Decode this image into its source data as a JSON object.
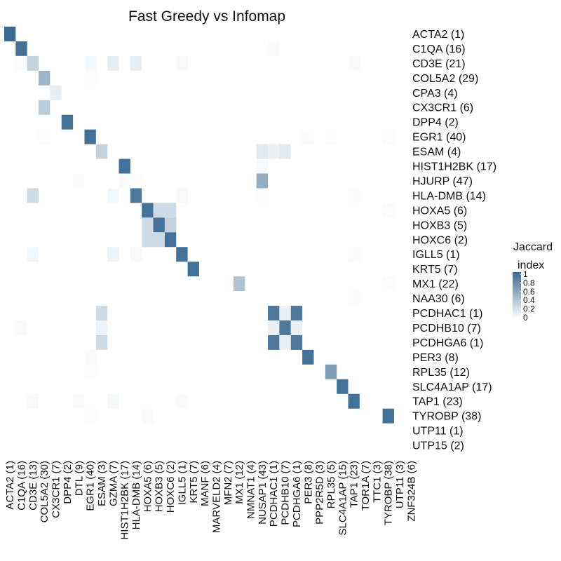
{
  "chart_data": {
    "type": "heatmap",
    "title": "Fast Greedy vs Infomap",
    "rows": [
      "ACTA2 (1)",
      "C1QA (16)",
      "CD3E (21)",
      "COL5A2 (29)",
      "CPA3 (4)",
      "CX3CR1 (6)",
      "DPP4 (2)",
      "EGR1 (40)",
      "ESAM (4)",
      "HIST1H2BK (17)",
      "HJURP (47)",
      "HLA-DMB (14)",
      "HOXA5 (6)",
      "HOXB3 (5)",
      "HOXC6 (2)",
      "IGLL5 (1)",
      "KRT5 (7)",
      "MX1 (22)",
      "NAA30 (6)",
      "PCDHAC1 (1)",
      "PCDHB10 (7)",
      "PCDHGA6 (1)",
      "PER3 (8)",
      "RPL35 (12)",
      "SLC4A1AP (17)",
      "TAP1 (23)",
      "TYROBP (38)",
      "UTP11 (1)",
      "UTP15 (2)"
    ],
    "columns": [
      "ACTA2 (1)",
      "C1QA (16)",
      "CD3E (13)",
      "COL5A2 (30)",
      "CX3CR1 (7)",
      "DPP4 (2)",
      "DTL (9)",
      "EGR1 (40)",
      "ESAM (3)",
      "GZMA (7)",
      "HIST1H2BK (17)",
      "HLA-DMB (14)",
      "HOXA5 (6)",
      "HOXB3 (5)",
      "HOXC6 (2)",
      "IGLL5 (1)",
      "KRT5 (7)",
      "MANF (6)",
      "MARVELD2 (4)",
      "MFN2 (7)",
      "MX1 (12)",
      "NMNAT1 (4)",
      "NUSAP1 (43)",
      "PCDHAC1 (1)",
      "PCDHB10 (7)",
      "PCDHGA6 (1)",
      "PER3 (8)",
      "PPP2R5D (3)",
      "RPL35 (5)",
      "SLC4A1AP (15)",
      "TAP1 (23)",
      "TOR1A (7)",
      "TTC1 (3)",
      "TYROBP (38)",
      "UTP11 (3)",
      "ZNF324B (6)"
    ],
    "cells": [
      [
        0,
        0,
        1.0
      ],
      [
        1,
        1,
        0.95
      ],
      [
        1,
        23,
        0.03
      ],
      [
        2,
        1,
        0.02
      ],
      [
        2,
        2,
        0.3
      ],
      [
        2,
        7,
        0.05
      ],
      [
        2,
        9,
        0.12
      ],
      [
        2,
        11,
        0.12
      ],
      [
        2,
        15,
        0.04
      ],
      [
        2,
        30,
        0.04
      ],
      [
        3,
        3,
        0.5
      ],
      [
        3,
        7,
        0.02
      ],
      [
        4,
        4,
        0.12
      ],
      [
        5,
        3,
        0.35
      ],
      [
        6,
        5,
        0.95
      ],
      [
        7,
        3,
        0.02
      ],
      [
        7,
        7,
        0.95
      ],
      [
        7,
        26,
        0.03
      ],
      [
        7,
        28,
        0.02
      ],
      [
        7,
        33,
        0.02
      ],
      [
        8,
        8,
        0.3
      ],
      [
        8,
        22,
        0.15
      ],
      [
        8,
        23,
        0.1
      ],
      [
        8,
        24,
        0.15
      ],
      [
        9,
        10,
        0.95
      ],
      [
        9,
        22,
        0.04
      ],
      [
        10,
        6,
        0.03
      ],
      [
        10,
        10,
        0.03
      ],
      [
        10,
        11,
        0.02
      ],
      [
        10,
        22,
        0.55
      ],
      [
        11,
        2,
        0.25
      ],
      [
        11,
        9,
        0.05
      ],
      [
        11,
        11,
        0.9
      ],
      [
        11,
        15,
        0.04
      ],
      [
        11,
        22,
        0.02
      ],
      [
        11,
        30,
        0.03
      ],
      [
        12,
        12,
        0.95
      ],
      [
        12,
        13,
        0.25
      ],
      [
        12,
        14,
        0.25
      ],
      [
        12,
        33,
        0.02
      ],
      [
        13,
        12,
        0.25
      ],
      [
        13,
        13,
        0.95
      ],
      [
        13,
        14,
        0.3
      ],
      [
        14,
        12,
        0.25
      ],
      [
        14,
        13,
        0.25
      ],
      [
        14,
        14,
        0.95
      ],
      [
        15,
        2,
        0.05
      ],
      [
        15,
        9,
        0.08
      ],
      [
        15,
        11,
        0.04
      ],
      [
        15,
        15,
        0.95
      ],
      [
        15,
        30,
        0.03
      ],
      [
        16,
        16,
        0.95
      ],
      [
        17,
        20,
        0.4
      ],
      [
        17,
        33,
        0.02
      ],
      [
        18,
        30,
        0.03
      ],
      [
        19,
        8,
        0.25
      ],
      [
        19,
        23,
        0.9
      ],
      [
        19,
        24,
        0.1
      ],
      [
        19,
        25,
        0.9
      ],
      [
        20,
        1,
        0.03
      ],
      [
        20,
        8,
        0.08
      ],
      [
        20,
        23,
        0.1
      ],
      [
        20,
        24,
        0.9
      ],
      [
        20,
        25,
        0.1
      ],
      [
        21,
        8,
        0.25
      ],
      [
        21,
        23,
        0.9
      ],
      [
        21,
        24,
        0.1
      ],
      [
        21,
        25,
        0.9
      ],
      [
        22,
        7,
        0.04
      ],
      [
        22,
        26,
        0.95
      ],
      [
        23,
        7,
        0.02
      ],
      [
        23,
        28,
        0.65
      ],
      [
        24,
        29,
        0.95
      ],
      [
        25,
        2,
        0.04
      ],
      [
        25,
        6,
        0.03
      ],
      [
        25,
        9,
        0.05
      ],
      [
        25,
        15,
        0.03
      ],
      [
        25,
        30,
        0.95
      ],
      [
        26,
        7,
        0.02
      ],
      [
        26,
        12,
        0.03
      ],
      [
        26,
        33,
        0.95
      ]
    ],
    "color_scale": {
      "low": "#ffffff",
      "high": "#3a6a92",
      "domain": [
        0,
        1
      ]
    },
    "legend": {
      "title_line1": "Jaccard",
      "title_line2": "index",
      "ticks": [
        "1",
        "0.8",
        "0.6",
        "0.4",
        "0.2",
        "0"
      ],
      "position": "right"
    }
  }
}
